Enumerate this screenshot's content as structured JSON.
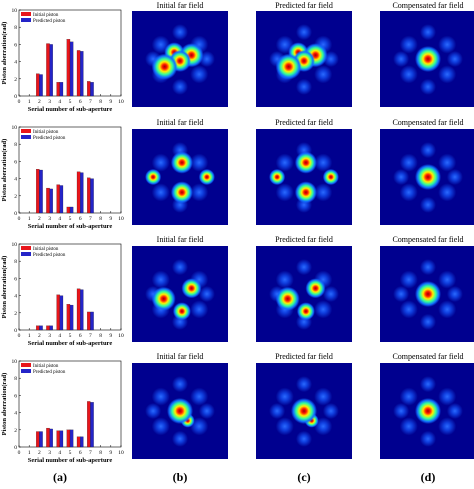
{
  "legend": {
    "initial": "Initial piston",
    "predicted": "Predicted piston"
  },
  "colors": {
    "initial": "#e8151b",
    "predicted": "#2424c8",
    "field_bg": "#00008f"
  },
  "far_field_titles": {
    "initial": "Initial far field",
    "predicted": "Predicted far field",
    "compensated": "Compensated far field"
  },
  "panel_labels": {
    "a": "(a)",
    "b": "(b)",
    "c": "(c)",
    "d": "(d)"
  },
  "chart_data": [
    {
      "type": "bar",
      "categories": [
        "0",
        "1",
        "2",
        "3",
        "4",
        "5",
        "6",
        "7",
        "8",
        "9",
        "10"
      ],
      "series": [
        {
          "name": "Initial piston",
          "values": [
            0,
            0,
            2.6,
            6.1,
            1.6,
            6.6,
            5.3,
            1.7,
            0,
            0,
            0
          ]
        },
        {
          "name": "Predicted piston",
          "values": [
            0,
            0,
            2.5,
            6.0,
            1.6,
            6.3,
            5.2,
            1.6,
            0,
            0,
            0
          ]
        }
      ],
      "xlabel": "Serial number of sub-aperture",
      "ylabel": "Piston aberration(rad)",
      "ylim": [
        0,
        10
      ],
      "yticks": [
        "0",
        "2",
        "4",
        "6",
        "8",
        "10"
      ]
    },
    {
      "type": "bar",
      "categories": [
        "0",
        "1",
        "2",
        "3",
        "4",
        "5",
        "6",
        "7",
        "8",
        "9",
        "10"
      ],
      "series": [
        {
          "name": "Initial piston",
          "values": [
            0,
            0,
            5.1,
            2.9,
            3.3,
            0.7,
            4.8,
            4.1,
            0,
            0,
            0
          ]
        },
        {
          "name": "Predicted piston",
          "values": [
            0,
            0,
            5.0,
            2.8,
            3.2,
            0.7,
            4.7,
            4.0,
            0,
            0,
            0
          ]
        }
      ],
      "xlabel": "Serial number of sub-aperture",
      "ylabel": "Piston aberration(rad)",
      "ylim": [
        0,
        10
      ],
      "yticks": [
        "0",
        "2",
        "4",
        "6",
        "8",
        "10"
      ]
    },
    {
      "type": "bar",
      "categories": [
        "0",
        "1",
        "2",
        "3",
        "4",
        "5",
        "6",
        "7",
        "8",
        "9",
        "10"
      ],
      "series": [
        {
          "name": "Initial piston",
          "values": [
            0,
            0,
            0.5,
            0.5,
            4.1,
            3.0,
            4.8,
            2.1,
            0,
            0,
            0
          ]
        },
        {
          "name": "Predicted piston",
          "values": [
            0,
            0,
            0.5,
            0.5,
            4.0,
            2.9,
            4.7,
            2.1,
            0,
            0,
            0
          ]
        }
      ],
      "xlabel": "Serial number of sub-aperture",
      "ylabel": "Piston aberration(rad)",
      "ylim": [
        0,
        10
      ],
      "yticks": [
        "0",
        "2",
        "4",
        "6",
        "8",
        "10"
      ]
    },
    {
      "type": "bar",
      "categories": [
        "0",
        "1",
        "2",
        "3",
        "4",
        "5",
        "6",
        "7",
        "8",
        "9",
        "10"
      ],
      "series": [
        {
          "name": "Initial piston",
          "values": [
            0,
            0,
            1.8,
            2.2,
            1.9,
            2.0,
            1.2,
            5.3,
            0,
            0,
            0
          ]
        },
        {
          "name": "Predicted piston",
          "values": [
            0,
            0,
            1.8,
            2.1,
            1.9,
            2.0,
            1.2,
            5.2,
            0,
            0,
            0
          ]
        }
      ],
      "xlabel": "Serial number of sub-aperture",
      "ylabel": "Piston aberration(rad)",
      "ylim": [
        0,
        10
      ],
      "yticks": [
        "0",
        "2",
        "4",
        "6",
        "8",
        "10"
      ]
    }
  ]
}
